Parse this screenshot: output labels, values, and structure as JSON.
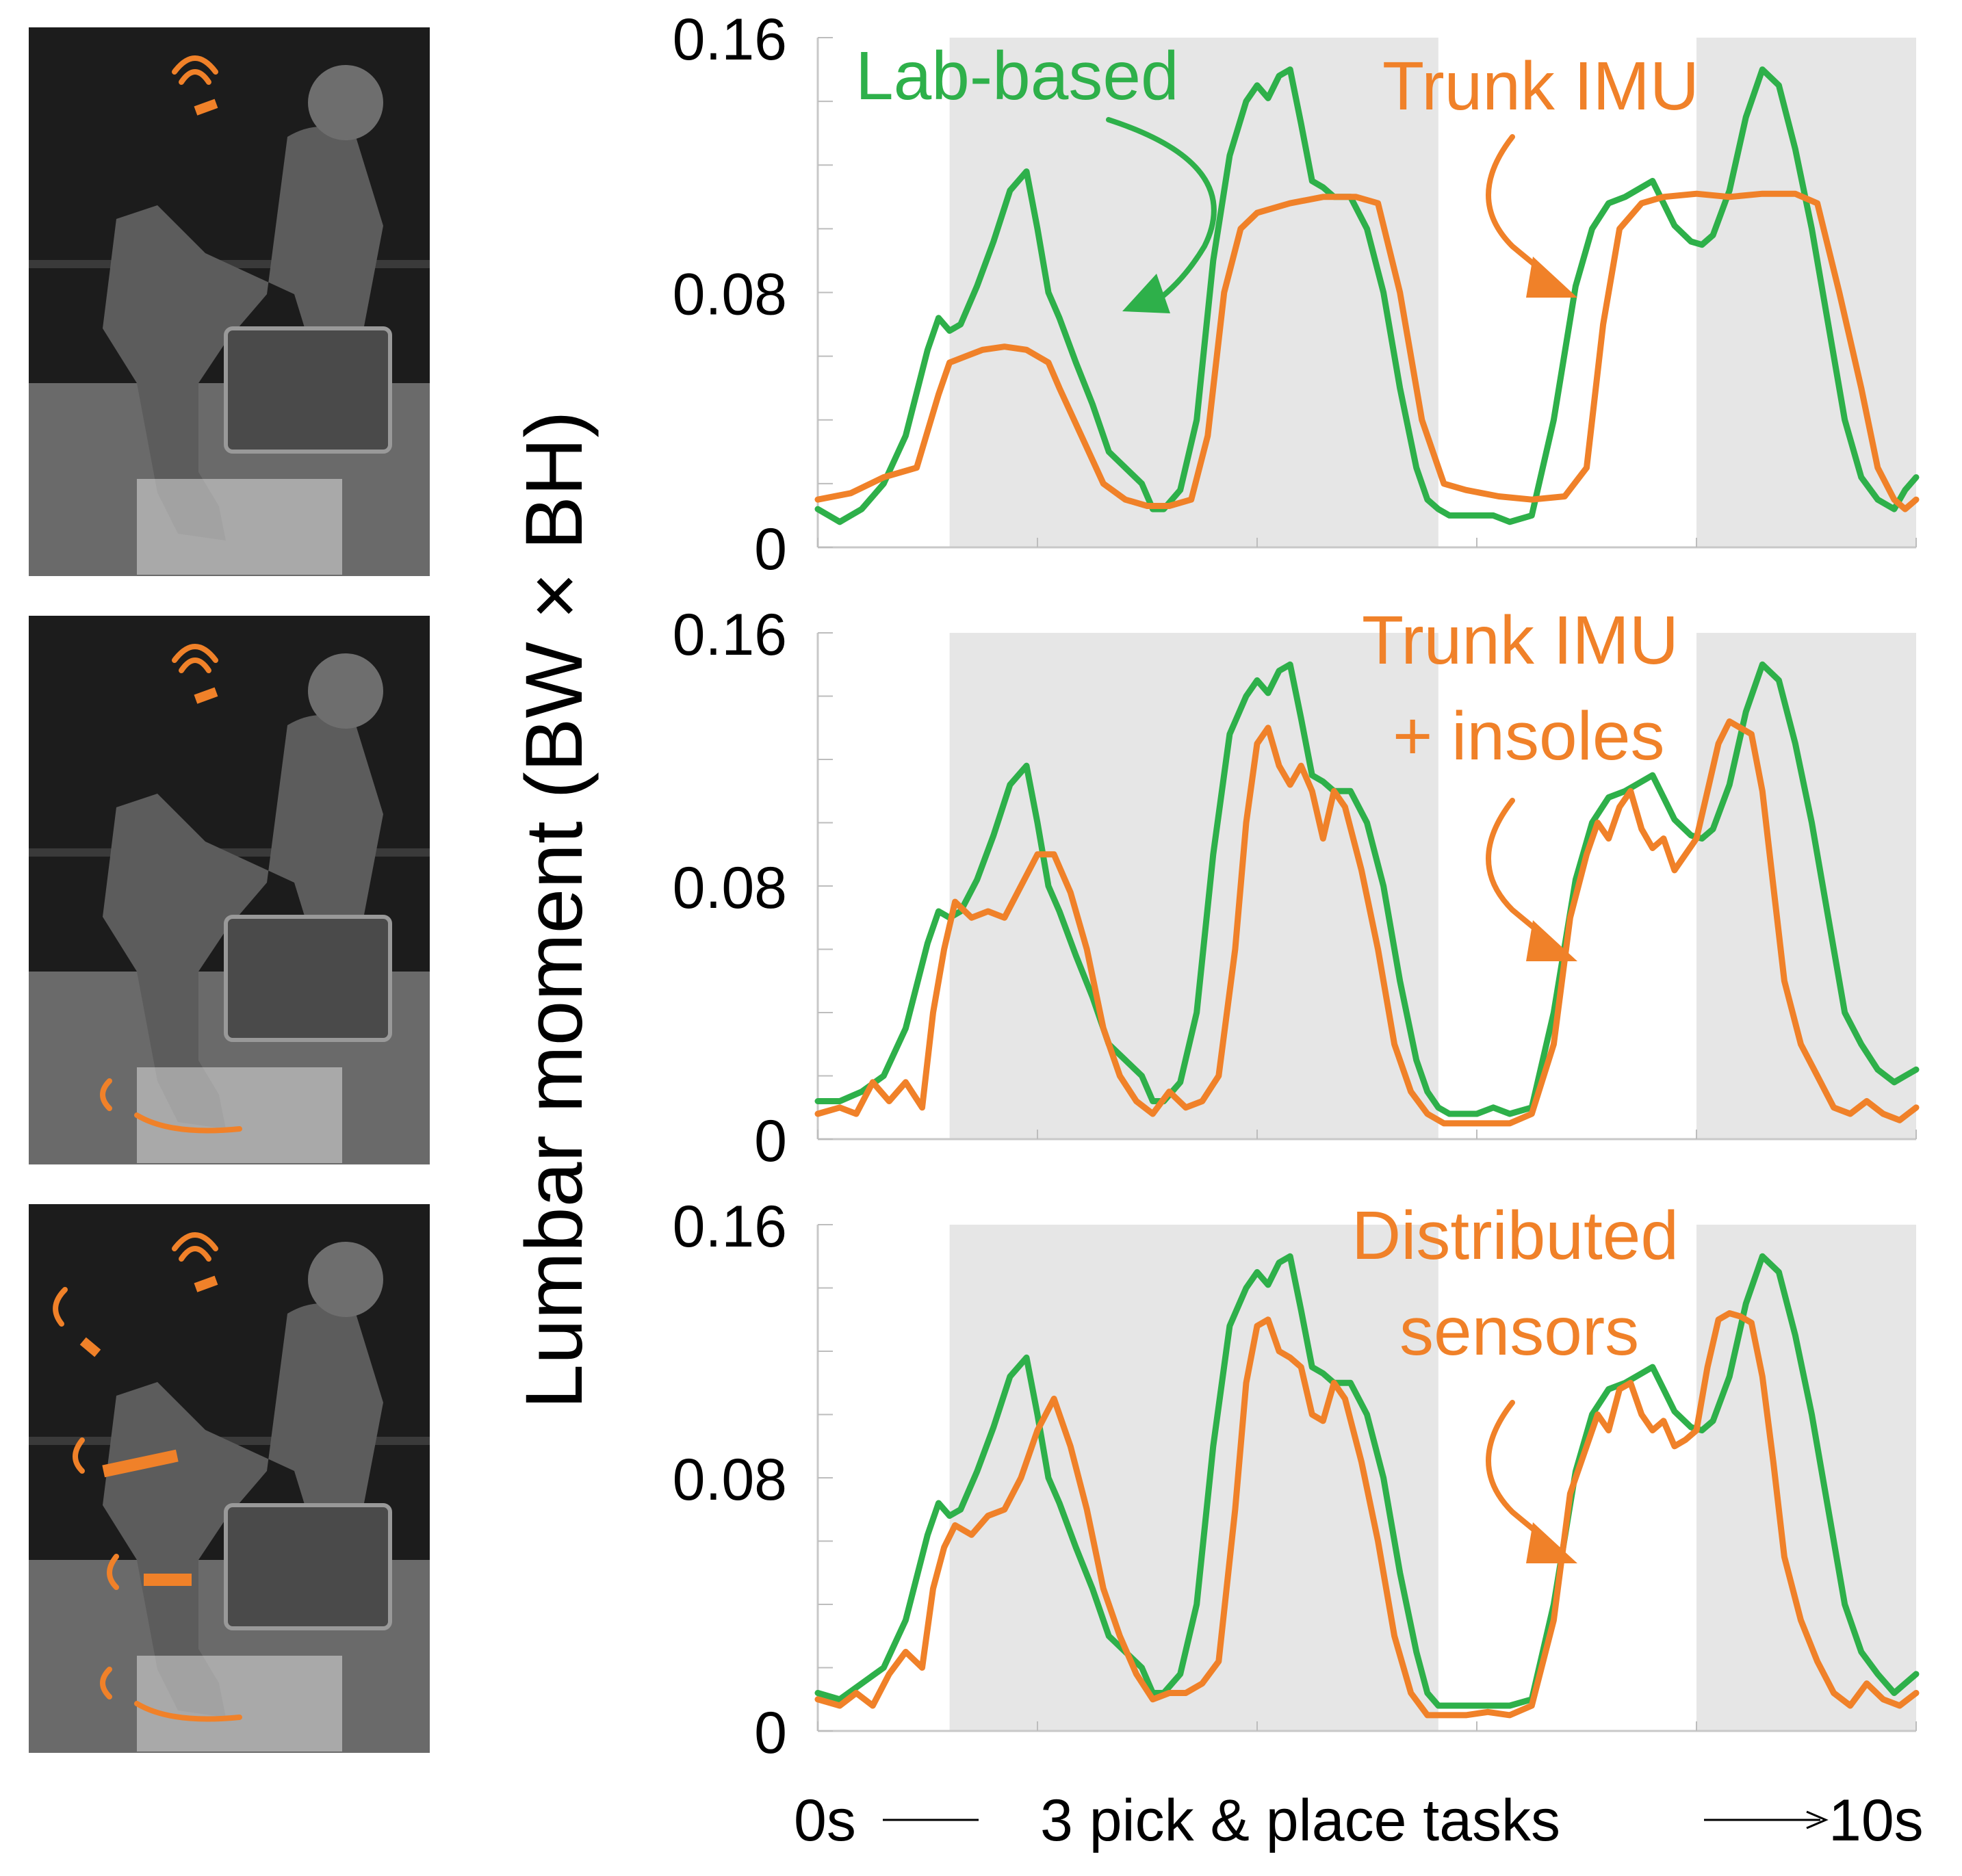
{
  "figure": {
    "ylabel": "Lumbar moment (BW × BH)",
    "x_start_label": "0s",
    "x_middle_label": "3 pick & place tasks",
    "x_end_label": "10s"
  },
  "colors": {
    "lab": "#2eb04a",
    "estimate": "#f08129",
    "shade": "#e6e6e6"
  },
  "photos": [
    {
      "sensors": "trunk IMU"
    },
    {
      "sensors": "trunk IMU + insoles"
    },
    {
      "sensors": "distributed sensors"
    }
  ],
  "chart_data": [
    {
      "type": "line",
      "xlim": [
        0,
        10
      ],
      "ylim": [
        0,
        0.16
      ],
      "yticks": [
        0,
        0.08,
        0.16
      ],
      "ytick_labels": [
        "0",
        "0.08",
        "0.16"
      ],
      "shaded_x": [
        [
          1.2,
          5.65
        ],
        [
          8.0,
          10.0
        ]
      ],
      "annotations": [
        "Lab-based",
        "Trunk IMU"
      ],
      "series": [
        {
          "name": "Lab-based",
          "x": [
            0,
            0.2,
            0.4,
            0.6,
            0.8,
            1.0,
            1.1,
            1.2,
            1.3,
            1.45,
            1.6,
            1.75,
            1.9,
            2.0,
            2.1,
            2.2,
            2.35,
            2.5,
            2.65,
            2.8,
            2.95,
            3.05,
            3.15,
            3.3,
            3.45,
            3.6,
            3.75,
            3.9,
            4.0,
            4.1,
            4.2,
            4.3,
            4.4,
            4.5,
            4.6,
            4.7,
            4.85,
            5.0,
            5.15,
            5.3,
            5.45,
            5.55,
            5.65,
            5.75,
            5.85,
            6.0,
            6.15,
            6.3,
            6.5,
            6.7,
            6.9,
            7.05,
            7.2,
            7.35,
            7.5,
            7.6,
            7.7,
            7.8,
            7.95,
            8.05,
            8.15,
            8.3,
            8.45,
            8.6,
            8.75,
            8.9,
            9.05,
            9.2,
            9.35,
            9.5,
            9.65,
            9.8,
            9.9,
            10.0
          ],
          "values": [
            0.012,
            0.008,
            0.012,
            0.02,
            0.035,
            0.062,
            0.072,
            0.068,
            0.07,
            0.082,
            0.096,
            0.112,
            0.118,
            0.1,
            0.08,
            0.072,
            0.058,
            0.045,
            0.03,
            0.025,
            0.02,
            0.012,
            0.012,
            0.018,
            0.04,
            0.09,
            0.123,
            0.14,
            0.145,
            0.141,
            0.148,
            0.15,
            0.133,
            0.115,
            0.113,
            0.11,
            0.11,
            0.1,
            0.08,
            0.05,
            0.025,
            0.015,
            0.012,
            0.01,
            0.01,
            0.01,
            0.01,
            0.008,
            0.01,
            0.04,
            0.082,
            0.1,
            0.108,
            0.11,
            0.113,
            0.115,
            0.108,
            0.101,
            0.096,
            0.095,
            0.098,
            0.112,
            0.135,
            0.15,
            0.145,
            0.125,
            0.1,
            0.07,
            0.04,
            0.022,
            0.015,
            0.012,
            0.018,
            0.022
          ]
        },
        {
          "name": "Trunk IMU",
          "x": [
            0,
            0.3,
            0.6,
            0.9,
            1.1,
            1.2,
            1.35,
            1.5,
            1.7,
            1.9,
            2.1,
            2.2,
            2.4,
            2.6,
            2.8,
            3.0,
            3.2,
            3.4,
            3.55,
            3.7,
            3.85,
            4.0,
            4.3,
            4.6,
            4.9,
            5.1,
            5.3,
            5.5,
            5.7,
            5.9,
            6.2,
            6.5,
            6.8,
            7.0,
            7.15,
            7.3,
            7.5,
            7.7,
            8.0,
            8.3,
            8.6,
            8.9,
            9.1,
            9.3,
            9.5,
            9.65,
            9.8,
            9.9,
            10.0
          ],
          "values": [
            0.015,
            0.017,
            0.022,
            0.025,
            0.048,
            0.058,
            0.06,
            0.062,
            0.063,
            0.062,
            0.058,
            0.05,
            0.035,
            0.02,
            0.015,
            0.013,
            0.013,
            0.015,
            0.035,
            0.08,
            0.1,
            0.105,
            0.108,
            0.11,
            0.11,
            0.108,
            0.08,
            0.04,
            0.02,
            0.018,
            0.016,
            0.015,
            0.016,
            0.025,
            0.07,
            0.1,
            0.108,
            0.11,
            0.111,
            0.11,
            0.111,
            0.111,
            0.108,
            0.08,
            0.05,
            0.025,
            0.015,
            0.012,
            0.015
          ]
        }
      ]
    },
    {
      "type": "line",
      "xlim": [
        0,
        10
      ],
      "ylim": [
        0,
        0.16
      ],
      "yticks": [
        0,
        0.08,
        0.16
      ],
      "ytick_labels": [
        "0",
        "0.08",
        "0.16"
      ],
      "shaded_x": [
        [
          1.2,
          5.65
        ],
        [
          8.0,
          10.0
        ]
      ],
      "annotations": [
        "Trunk IMU",
        "+ insoles"
      ],
      "series": [
        {
          "name": "Lab-based",
          "x": [
            0,
            0.2,
            0.4,
            0.6,
            0.8,
            1.0,
            1.1,
            1.2,
            1.3,
            1.45,
            1.6,
            1.75,
            1.9,
            2.0,
            2.1,
            2.2,
            2.35,
            2.5,
            2.65,
            2.8,
            2.95,
            3.05,
            3.15,
            3.3,
            3.45,
            3.6,
            3.75,
            3.9,
            4.0,
            4.1,
            4.2,
            4.3,
            4.4,
            4.5,
            4.6,
            4.7,
            4.85,
            5.0,
            5.15,
            5.3,
            5.45,
            5.55,
            5.65,
            5.75,
            5.85,
            6.0,
            6.15,
            6.3,
            6.5,
            6.7,
            6.9,
            7.05,
            7.2,
            7.35,
            7.5,
            7.6,
            7.7,
            7.8,
            7.95,
            8.05,
            8.15,
            8.3,
            8.45,
            8.6,
            8.75,
            8.9,
            9.05,
            9.2,
            9.35,
            9.5,
            9.65,
            9.8,
            9.9,
            10.0
          ],
          "values": [
            0.012,
            0.012,
            0.015,
            0.02,
            0.035,
            0.062,
            0.072,
            0.07,
            0.072,
            0.082,
            0.096,
            0.112,
            0.118,
            0.1,
            0.08,
            0.072,
            0.058,
            0.045,
            0.03,
            0.025,
            0.02,
            0.012,
            0.012,
            0.018,
            0.04,
            0.09,
            0.128,
            0.14,
            0.145,
            0.141,
            0.148,
            0.15,
            0.133,
            0.115,
            0.113,
            0.11,
            0.11,
            0.1,
            0.08,
            0.05,
            0.025,
            0.015,
            0.01,
            0.008,
            0.008,
            0.008,
            0.01,
            0.008,
            0.01,
            0.04,
            0.082,
            0.1,
            0.108,
            0.11,
            0.113,
            0.115,
            0.108,
            0.101,
            0.096,
            0.095,
            0.098,
            0.112,
            0.135,
            0.15,
            0.145,
            0.125,
            0.1,
            0.07,
            0.04,
            0.03,
            0.022,
            0.018,
            0.02,
            0.022
          ]
        },
        {
          "name": "Trunk IMU + insoles",
          "x": [
            0,
            0.2,
            0.35,
            0.5,
            0.65,
            0.8,
            0.95,
            1.05,
            1.15,
            1.25,
            1.4,
            1.55,
            1.7,
            1.85,
            2.0,
            2.15,
            2.3,
            2.45,
            2.6,
            2.75,
            2.9,
            3.05,
            3.2,
            3.35,
            3.5,
            3.65,
            3.8,
            3.9,
            4.0,
            4.1,
            4.2,
            4.3,
            4.4,
            4.5,
            4.6,
            4.7,
            4.8,
            4.95,
            5.1,
            5.25,
            5.4,
            5.55,
            5.7,
            5.9,
            6.1,
            6.3,
            6.5,
            6.7,
            6.85,
            7.0,
            7.1,
            7.2,
            7.3,
            7.4,
            7.5,
            7.6,
            7.7,
            7.8,
            7.9,
            8.0,
            8.1,
            8.2,
            8.3,
            8.4,
            8.5,
            8.6,
            8.7,
            8.8,
            8.95,
            9.1,
            9.25,
            9.4,
            9.55,
            9.7,
            9.85,
            10.0
          ],
          "values": [
            0.008,
            0.01,
            0.008,
            0.018,
            0.012,
            0.018,
            0.01,
            0.04,
            0.06,
            0.075,
            0.07,
            0.072,
            0.07,
            0.08,
            0.09,
            0.09,
            0.078,
            0.06,
            0.035,
            0.02,
            0.012,
            0.008,
            0.015,
            0.01,
            0.012,
            0.02,
            0.06,
            0.1,
            0.125,
            0.13,
            0.118,
            0.112,
            0.118,
            0.11,
            0.095,
            0.11,
            0.105,
            0.085,
            0.06,
            0.03,
            0.015,
            0.008,
            0.005,
            0.005,
            0.005,
            0.005,
            0.008,
            0.03,
            0.07,
            0.09,
            0.1,
            0.095,
            0.105,
            0.11,
            0.098,
            0.092,
            0.095,
            0.085,
            0.09,
            0.095,
            0.11,
            0.125,
            0.132,
            0.13,
            0.128,
            0.11,
            0.08,
            0.05,
            0.03,
            0.02,
            0.01,
            0.008,
            0.012,
            0.008,
            0.006,
            0.01
          ]
        }
      ]
    },
    {
      "type": "line",
      "xlim": [
        0,
        10
      ],
      "ylim": [
        0,
        0.16
      ],
      "yticks": [
        0,
        0.08,
        0.16
      ],
      "ytick_labels": [
        "0",
        "0.08",
        "0.16"
      ],
      "shaded_x": [
        [
          1.2,
          5.65
        ],
        [
          8.0,
          10.0
        ]
      ],
      "annotations": [
        "Distributed",
        "sensors"
      ],
      "series": [
        {
          "name": "Lab-based",
          "x": [
            0,
            0.2,
            0.4,
            0.6,
            0.8,
            1.0,
            1.1,
            1.2,
            1.3,
            1.45,
            1.6,
            1.75,
            1.9,
            2.0,
            2.1,
            2.2,
            2.35,
            2.5,
            2.65,
            2.8,
            2.95,
            3.05,
            3.15,
            3.3,
            3.45,
            3.6,
            3.75,
            3.9,
            4.0,
            4.1,
            4.2,
            4.3,
            4.4,
            4.5,
            4.6,
            4.7,
            4.85,
            5.0,
            5.15,
            5.3,
            5.45,
            5.55,
            5.65,
            5.75,
            5.85,
            6.0,
            6.15,
            6.3,
            6.5,
            6.7,
            6.9,
            7.05,
            7.2,
            7.35,
            7.5,
            7.6,
            7.7,
            7.8,
            7.95,
            8.05,
            8.15,
            8.3,
            8.45,
            8.6,
            8.75,
            8.9,
            9.05,
            9.2,
            9.35,
            9.5,
            9.65,
            9.8,
            9.9,
            10.0
          ],
          "values": [
            0.012,
            0.01,
            0.015,
            0.02,
            0.035,
            0.062,
            0.072,
            0.068,
            0.07,
            0.082,
            0.096,
            0.112,
            0.118,
            0.1,
            0.08,
            0.072,
            0.058,
            0.045,
            0.03,
            0.025,
            0.02,
            0.012,
            0.012,
            0.018,
            0.04,
            0.09,
            0.128,
            0.14,
            0.145,
            0.141,
            0.148,
            0.15,
            0.133,
            0.115,
            0.113,
            0.11,
            0.11,
            0.1,
            0.08,
            0.05,
            0.025,
            0.012,
            0.008,
            0.008,
            0.008,
            0.008,
            0.008,
            0.008,
            0.01,
            0.04,
            0.082,
            0.1,
            0.108,
            0.11,
            0.113,
            0.115,
            0.108,
            0.101,
            0.096,
            0.095,
            0.098,
            0.112,
            0.135,
            0.15,
            0.145,
            0.125,
            0.1,
            0.07,
            0.04,
            0.025,
            0.018,
            0.012,
            0.015,
            0.018
          ]
        },
        {
          "name": "Distributed sensors",
          "x": [
            0,
            0.2,
            0.35,
            0.5,
            0.65,
            0.8,
            0.95,
            1.05,
            1.15,
            1.25,
            1.4,
            1.55,
            1.7,
            1.85,
            2.0,
            2.15,
            2.3,
            2.45,
            2.6,
            2.75,
            2.9,
            3.05,
            3.2,
            3.35,
            3.5,
            3.65,
            3.8,
            3.9,
            4.0,
            4.1,
            4.2,
            4.3,
            4.4,
            4.5,
            4.6,
            4.7,
            4.8,
            4.95,
            5.1,
            5.25,
            5.4,
            5.55,
            5.7,
            5.9,
            6.1,
            6.3,
            6.5,
            6.7,
            6.85,
            7.0,
            7.1,
            7.2,
            7.3,
            7.4,
            7.5,
            7.6,
            7.7,
            7.8,
            7.9,
            8.0,
            8.1,
            8.2,
            8.3,
            8.4,
            8.5,
            8.6,
            8.7,
            8.8,
            8.95,
            9.1,
            9.25,
            9.4,
            9.55,
            9.7,
            9.85,
            10.0
          ],
          "values": [
            0.01,
            0.008,
            0.012,
            0.008,
            0.018,
            0.025,
            0.02,
            0.045,
            0.058,
            0.065,
            0.062,
            0.068,
            0.07,
            0.08,
            0.095,
            0.105,
            0.09,
            0.07,
            0.045,
            0.03,
            0.018,
            0.01,
            0.012,
            0.012,
            0.015,
            0.022,
            0.07,
            0.11,
            0.128,
            0.13,
            0.12,
            0.118,
            0.115,
            0.1,
            0.098,
            0.11,
            0.105,
            0.085,
            0.06,
            0.03,
            0.012,
            0.005,
            0.005,
            0.005,
            0.006,
            0.005,
            0.008,
            0.035,
            0.075,
            0.09,
            0.1,
            0.095,
            0.108,
            0.11,
            0.1,
            0.095,
            0.098,
            0.09,
            0.092,
            0.095,
            0.115,
            0.13,
            0.132,
            0.131,
            0.129,
            0.112,
            0.085,
            0.055,
            0.035,
            0.022,
            0.012,
            0.008,
            0.015,
            0.01,
            0.008,
            0.012
          ]
        }
      ]
    }
  ]
}
